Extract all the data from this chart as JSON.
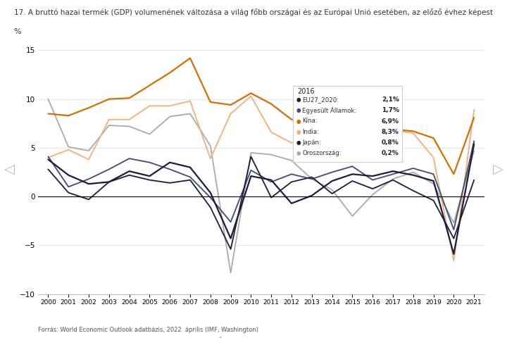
{
  "title": "17. A bruttó hazai termék (GDP) volumenének változása a világ főbb országai és az Európai Unió esetében, az előző évhez képest",
  "ylabel": "%",
  "source": "Forrás: World Economic Outlook adatbázis, 2022. április (IMF, Washington)",
  "years": [
    2000,
    2001,
    2002,
    2003,
    2004,
    2005,
    2006,
    2007,
    2008,
    2009,
    2010,
    2011,
    2012,
    2013,
    2014,
    2015,
    2016,
    2017,
    2018,
    2019,
    2020,
    2021
  ],
  "eu27": [
    3.8,
    2.2,
    1.3,
    1.5,
    2.6,
    2.1,
    3.5,
    3.0,
    0.4,
    -4.3,
    2.1,
    1.7,
    -0.7,
    0.1,
    1.6,
    2.3,
    2.1,
    2.6,
    2.2,
    1.6,
    -5.9,
    5.4
  ],
  "usa": [
    4.1,
    1.0,
    1.8,
    2.8,
    3.9,
    3.5,
    2.8,
    2.0,
    -0.1,
    -2.6,
    2.7,
    1.5,
    2.3,
    1.8,
    2.5,
    3.1,
    1.7,
    2.3,
    2.9,
    2.3,
    -3.4,
    5.7
  ],
  "china": [
    8.5,
    8.3,
    9.1,
    10.0,
    10.1,
    11.4,
    12.7,
    14.2,
    9.7,
    9.4,
    10.6,
    9.5,
    7.9,
    7.8,
    7.3,
    6.9,
    6.9,
    6.9,
    6.7,
    6.0,
    2.3,
    8.1
  ],
  "india": [
    4.0,
    4.8,
    3.8,
    7.9,
    7.9,
    9.3,
    9.3,
    9.8,
    3.9,
    8.5,
    10.3,
    6.6,
    5.5,
    6.4,
    7.4,
    8.0,
    8.3,
    6.8,
    6.5,
    4.0,
    -6.6,
    8.9
  ],
  "japan": [
    2.8,
    0.4,
    -0.3,
    1.5,
    2.2,
    1.7,
    1.4,
    1.7,
    -1.1,
    -5.4,
    4.1,
    -0.1,
    1.5,
    2.0,
    0.3,
    1.6,
    0.8,
    1.7,
    0.6,
    -0.4,
    -4.3,
    1.7
  ],
  "russia": [
    10.0,
    5.1,
    4.7,
    7.3,
    7.2,
    6.4,
    8.2,
    8.5,
    5.2,
    -7.8,
    4.5,
    4.3,
    3.7,
    1.8,
    0.7,
    -2.0,
    0.2,
    1.8,
    2.5,
    1.3,
    -2.7,
    4.7
  ],
  "colors": {
    "eu27": "#1c1c3c",
    "usa": "#3c4a7c",
    "china": "#d47000",
    "india": "#f0b07a",
    "japan": "#1c1c3c",
    "russia": "#aaaaaa"
  },
  "linestyles": {
    "eu27": "-",
    "usa": "-",
    "china": "-",
    "india": "-",
    "japan": "-",
    "russia": "-"
  },
  "linewidths": {
    "eu27": 1.6,
    "usa": 1.3,
    "china": 1.6,
    "india": 1.3,
    "japan": 1.3,
    "russia": 1.3
  },
  "legend_labels": {
    "eu27": "EU27_2020",
    "usa": "Egyesült Államok",
    "china": "Kína",
    "india": "India",
    "japan": "Japán",
    "russia": "Oroszország"
  },
  "tooltip_year": 2016,
  "tooltip_data": {
    "EU27_2020": "2,1%",
    "Egyesült Államok": "1,7%",
    "Kína": "6,9%",
    "India": "8,3%",
    "Japán": "0,8%",
    "Oroszország": "0,2%"
  },
  "ylim": [
    -10,
    16
  ],
  "yticks": [
    -10,
    -5,
    0,
    5,
    10,
    15
  ],
  "background_color": "#ffffff",
  "plot_bg": "#ffffff",
  "grid_color": "#dddddd",
  "arrow_left": "◁",
  "arrow_right": "▷"
}
